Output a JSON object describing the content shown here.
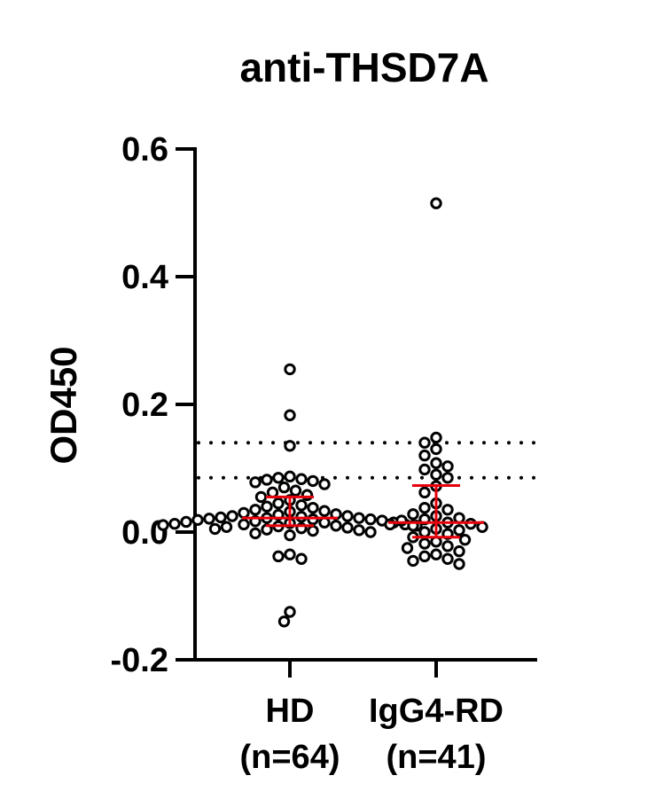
{
  "chart_data": {
    "type": "scatter",
    "title": "anti-THSD7A",
    "ylabel": "OD450",
    "xlabel": "",
    "ylim": [
      -0.2,
      0.6
    ],
    "yticks": [
      -0.2,
      0.0,
      0.2,
      0.4,
      0.6
    ],
    "ytick_labels": [
      "-0.2",
      "0.0",
      "0.2",
      "0.4",
      "0.6"
    ],
    "grid": false,
    "colors": {
      "points": "#000000",
      "summary": "#e8000b",
      "axis": "#000000"
    },
    "cutoff_lines": [
      0.14,
      0.085
    ],
    "categories": [
      {
        "label_line1": "HD",
        "label_line2": "(n=64)",
        "summary": {
          "median": 0.022,
          "q1": 0.01,
          "q3": 0.055
        },
        "values": [
          0.255,
          0.183,
          0.135,
          0.087,
          0.085,
          0.083,
          0.082,
          0.08,
          0.078,
          0.075,
          0.07,
          0.065,
          0.062,
          0.058,
          0.055,
          0.05,
          0.045,
          0.042,
          0.04,
          0.038,
          0.035,
          0.033,
          0.032,
          0.03,
          0.028,
          0.027,
          0.025,
          0.025,
          0.024,
          0.023,
          0.022,
          0.022,
          0.021,
          0.02,
          0.02,
          0.019,
          0.018,
          0.017,
          0.016,
          0.015,
          0.015,
          0.014,
          0.013,
          0.012,
          0.012,
          0.011,
          0.01,
          0.01,
          0.009,
          0.008,
          0.007,
          0.006,
          0.005,
          0.004,
          0.003,
          0.002,
          0.0,
          -0.002,
          -0.005,
          -0.035,
          -0.038,
          -0.042,
          -0.125,
          -0.14
        ]
      },
      {
        "label_line1": "IgG4-RD",
        "label_line2": "(n=41)",
        "summary": {
          "median": 0.015,
          "q1": -0.008,
          "q3": 0.073
        },
        "values": [
          0.515,
          0.148,
          0.14,
          0.13,
          0.12,
          0.108,
          0.103,
          0.098,
          0.09,
          0.085,
          0.072,
          0.062,
          0.045,
          0.038,
          0.035,
          0.028,
          0.025,
          0.022,
          0.02,
          0.018,
          0.015,
          0.013,
          0.012,
          0.01,
          0.008,
          0.005,
          0.003,
          0.0,
          -0.003,
          -0.008,
          -0.012,
          -0.015,
          -0.018,
          -0.022,
          -0.025,
          -0.03,
          -0.035,
          -0.038,
          -0.042,
          -0.045,
          -0.05
        ]
      }
    ]
  }
}
